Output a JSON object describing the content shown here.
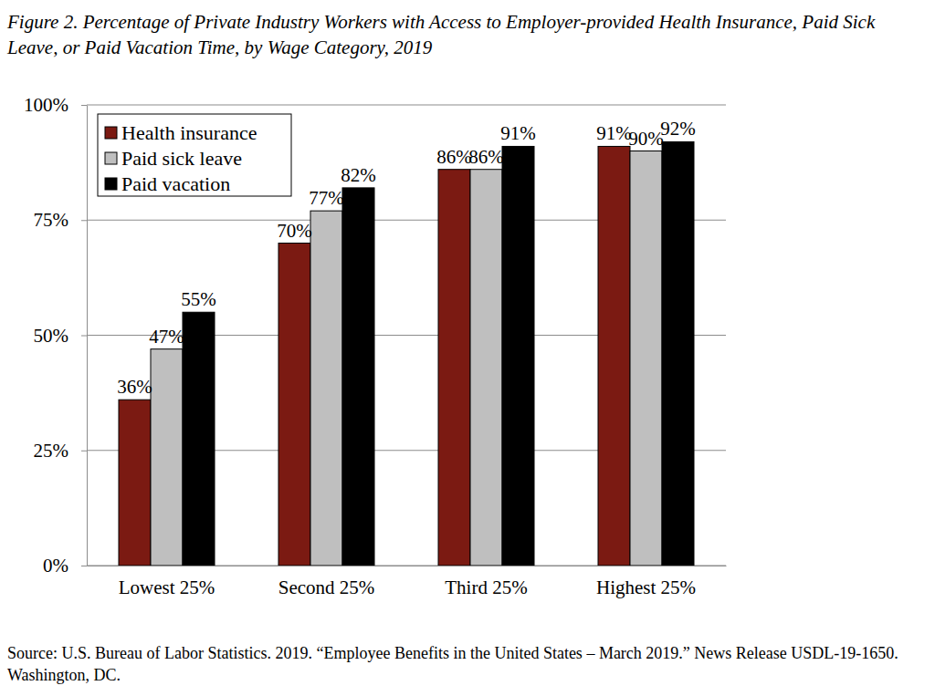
{
  "chart_data": {
    "type": "bar",
    "title": "Figure 2. Percentage of Private Industry Workers with Access to Employer-provided Health Insurance, Paid Sick Leave, or Paid Vacation Time, by Wage Category, 2019",
    "source": "Source: U.S. Bureau of Labor Statistics. 2019. “Employee Benefits in the United States – March 2019.” News Release USDL-19-1650. Washington, DC.",
    "categories": [
      "Lowest 25%",
      "Second 25%",
      "Third 25%",
      "Highest 25%"
    ],
    "series": [
      {
        "name": "Health insurance",
        "color": "#7b1a12",
        "values": [
          36,
          70,
          86,
          91
        ],
        "value_labels": [
          "36%",
          "70%",
          "86%",
          "91%"
        ]
      },
      {
        "name": "Paid sick leave",
        "color": "#bfbfbf",
        "values": [
          47,
          77,
          86,
          90
        ],
        "value_labels": [
          "47%",
          "77%",
          "86%",
          "90%"
        ]
      },
      {
        "name": "Paid vacation",
        "color": "#000000",
        "values": [
          55,
          82,
          91,
          92
        ],
        "value_labels": [
          "55%",
          "82%",
          "91%",
          "92%"
        ]
      }
    ],
    "ylim": [
      0,
      100
    ],
    "yticks": [
      {
        "value": 0,
        "label": "0%"
      },
      {
        "value": 25,
        "label": "25%"
      },
      {
        "value": 50,
        "label": "50%"
      },
      {
        "value": 75,
        "label": "75%"
      },
      {
        "value": 100,
        "label": "100%"
      }
    ],
    "grid": true,
    "legend": "upper left",
    "data_labels": true
  }
}
